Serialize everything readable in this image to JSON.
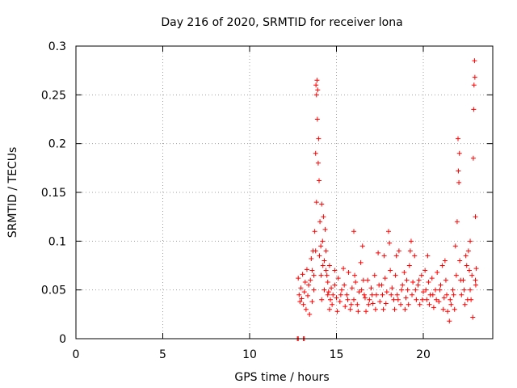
{
  "chart_data": {
    "type": "scatter",
    "title": "Day 216 of 2020, SRMTID for receiver lona",
    "xlabel": "GPS time / hours",
    "ylabel": "SRMTID / TECUs",
    "xlim": [
      0,
      24
    ],
    "ylim": [
      0,
      0.3
    ],
    "xticks": [
      0,
      5,
      10,
      15,
      20
    ],
    "xtick_labels": [
      "0",
      "5",
      "10",
      "15",
      "20"
    ],
    "yticks": [
      0,
      0.05,
      0.1,
      0.15,
      0.2,
      0.25,
      0.3
    ],
    "ytick_labels": [
      "0",
      "0.05",
      "0.1",
      "0.15",
      "0.2",
      "0.25",
      "0.3"
    ],
    "grid": true,
    "marker": "+",
    "color": "#ff0000",
    "series": [
      {
        "name": "SRMTID",
        "points": [
          [
            12.75,
            0.0
          ],
          [
            12.8,
            0.0
          ],
          [
            13.1,
            0.0
          ],
          [
            13.15,
            0.0
          ],
          [
            12.8,
            0.062
          ],
          [
            12.85,
            0.045
          ],
          [
            12.9,
            0.038
          ],
          [
            12.95,
            0.052
          ],
          [
            13.0,
            0.041
          ],
          [
            13.05,
            0.066
          ],
          [
            13.1,
            0.035
          ],
          [
            13.15,
            0.048
          ],
          [
            13.2,
            0.058
          ],
          [
            13.25,
            0.03
          ],
          [
            13.3,
            0.071
          ],
          [
            13.35,
            0.044
          ],
          [
            13.4,
            0.055
          ],
          [
            13.45,
            0.025
          ],
          [
            13.5,
            0.06
          ],
          [
            13.55,
            0.082
          ],
          [
            13.6,
            0.038
          ],
          [
            13.65,
            0.09
          ],
          [
            13.7,
            0.05
          ],
          [
            13.75,
            0.11
          ],
          [
            13.8,
            0.19
          ],
          [
            13.82,
            0.26
          ],
          [
            13.85,
            0.25
          ],
          [
            13.88,
            0.265
          ],
          [
            13.9,
            0.225
          ],
          [
            13.92,
            0.255
          ],
          [
            13.95,
            0.18
          ],
          [
            13.97,
            0.205
          ],
          [
            14.0,
            0.162
          ],
          [
            14.05,
            0.12
          ],
          [
            14.1,
            0.095
          ],
          [
            14.15,
            0.138
          ],
          [
            14.2,
            0.1
          ],
          [
            14.25,
            0.125
          ],
          [
            14.3,
            0.08
          ],
          [
            14.35,
            0.112
          ],
          [
            14.4,
            0.07
          ],
          [
            14.45,
            0.065
          ],
          [
            14.5,
            0.058
          ],
          [
            14.55,
            0.048
          ],
          [
            14.6,
            0.075
          ],
          [
            14.65,
            0.04
          ],
          [
            14.7,
            0.052
          ],
          [
            14.75,
            0.035
          ],
          [
            14.8,
            0.045
          ],
          [
            14.9,
            0.055
          ],
          [
            15.0,
            0.042
          ],
          [
            15.1,
            0.062
          ],
          [
            15.2,
            0.038
          ],
          [
            15.3,
            0.05
          ],
          [
            15.4,
            0.072
          ],
          [
            15.5,
            0.033
          ],
          [
            15.6,
            0.045
          ],
          [
            15.7,
            0.068
          ],
          [
            15.8,
            0.03
          ],
          [
            15.9,
            0.052
          ],
          [
            16.0,
            0.04
          ],
          [
            16.1,
            0.058
          ],
          [
            16.2,
            0.035
          ],
          [
            16.3,
            0.048
          ],
          [
            16.4,
            0.078
          ],
          [
            16.5,
            0.095
          ],
          [
            16.6,
            0.045
          ],
          [
            16.7,
            0.028
          ],
          [
            16.8,
            0.06
          ],
          [
            16.9,
            0.04
          ],
          [
            17.0,
            0.052
          ],
          [
            17.1,
            0.036
          ],
          [
            17.2,
            0.065
          ],
          [
            17.3,
            0.045
          ],
          [
            17.4,
            0.088
          ],
          [
            17.5,
            0.038
          ],
          [
            17.6,
            0.055
          ],
          [
            17.7,
            0.03
          ],
          [
            17.8,
            0.062
          ],
          [
            17.9,
            0.048
          ],
          [
            18.0,
            0.11
          ],
          [
            18.05,
            0.098
          ],
          [
            18.1,
            0.07
          ],
          [
            18.2,
            0.052
          ],
          [
            18.3,
            0.04
          ],
          [
            18.4,
            0.065
          ],
          [
            18.5,
            0.045
          ],
          [
            18.6,
            0.09
          ],
          [
            18.7,
            0.035
          ],
          [
            18.8,
            0.055
          ],
          [
            18.9,
            0.068
          ],
          [
            19.0,
            0.042
          ],
          [
            19.1,
            0.05
          ],
          [
            19.2,
            0.075
          ],
          [
            19.3,
            0.1
          ],
          [
            19.4,
            0.058
          ],
          [
            19.5,
            0.085
          ],
          [
            19.6,
            0.04
          ],
          [
            19.7,
            0.055
          ],
          [
            19.8,
            0.035
          ],
          [
            19.9,
            0.065
          ],
          [
            20.0,
            0.048
          ],
          [
            20.1,
            0.07
          ],
          [
            20.2,
            0.04
          ],
          [
            20.3,
            0.058
          ],
          [
            20.4,
            0.045
          ],
          [
            20.5,
            0.062
          ],
          [
            20.6,
            0.032
          ],
          [
            20.7,
            0.05
          ],
          [
            20.8,
            0.068
          ],
          [
            20.9,
            0.038
          ],
          [
            21.0,
            0.055
          ],
          [
            21.1,
            0.075
          ],
          [
            21.2,
            0.042
          ],
          [
            21.3,
            0.06
          ],
          [
            21.4,
            0.028
          ],
          [
            21.5,
            0.018
          ],
          [
            21.6,
            0.035
          ],
          [
            21.7,
            0.05
          ],
          [
            21.8,
            0.03
          ],
          [
            21.9,
            0.065
          ],
          [
            21.95,
            0.12
          ],
          [
            22.0,
            0.205
          ],
          [
            22.02,
            0.172
          ],
          [
            22.05,
            0.16
          ],
          [
            22.08,
            0.19
          ],
          [
            22.1,
            0.08
          ],
          [
            22.2,
            0.045
          ],
          [
            22.3,
            0.06
          ],
          [
            22.4,
            0.035
          ],
          [
            22.5,
            0.075
          ],
          [
            22.6,
            0.09
          ],
          [
            22.7,
            0.05
          ],
          [
            22.75,
            0.04
          ],
          [
            22.8,
            0.065
          ],
          [
            22.85,
            0.022
          ],
          [
            22.88,
            0.185
          ],
          [
            22.9,
            0.235
          ],
          [
            22.92,
            0.26
          ],
          [
            22.95,
            0.285
          ],
          [
            22.97,
            0.268
          ],
          [
            23.0,
            0.125
          ],
          [
            23.02,
            0.055
          ],
          [
            23.05,
            0.072
          ],
          [
            14.15,
            0.04
          ],
          [
            14.3,
            0.05
          ],
          [
            14.6,
            0.03
          ],
          [
            14.9,
            0.07
          ],
          [
            15.05,
            0.028
          ],
          [
            15.25,
            0.045
          ],
          [
            15.45,
            0.055
          ],
          [
            15.65,
            0.04
          ],
          [
            15.85,
            0.035
          ],
          [
            16.05,
            0.065
          ],
          [
            16.25,
            0.028
          ],
          [
            16.45,
            0.05
          ],
          [
            16.65,
            0.042
          ],
          [
            16.85,
            0.035
          ],
          [
            17.05,
            0.045
          ],
          [
            17.25,
            0.03
          ],
          [
            17.45,
            0.055
          ],
          [
            17.65,
            0.045
          ],
          [
            17.85,
            0.036
          ],
          [
            18.15,
            0.045
          ],
          [
            18.35,
            0.03
          ],
          [
            18.55,
            0.04
          ],
          [
            18.75,
            0.05
          ],
          [
            18.95,
            0.03
          ],
          [
            19.15,
            0.035
          ],
          [
            19.35,
            0.045
          ],
          [
            19.55,
            0.05
          ],
          [
            19.75,
            0.06
          ],
          [
            19.95,
            0.04
          ],
          [
            20.15,
            0.05
          ],
          [
            20.35,
            0.035
          ],
          [
            20.55,
            0.045
          ],
          [
            20.75,
            0.04
          ],
          [
            20.95,
            0.05
          ],
          [
            21.15,
            0.03
          ],
          [
            21.35,
            0.045
          ],
          [
            21.55,
            0.04
          ],
          [
            21.75,
            0.045
          ],
          [
            22.15,
            0.06
          ],
          [
            22.35,
            0.05
          ],
          [
            22.55,
            0.04
          ],
          [
            22.65,
            0.07
          ],
          [
            23.0,
            0.06
          ],
          [
            13.6,
            0.07
          ],
          [
            13.7,
            0.065
          ],
          [
            13.8,
            0.09
          ],
          [
            13.85,
            0.14
          ],
          [
            14.02,
            0.085
          ],
          [
            14.12,
            0.065
          ],
          [
            14.22,
            0.075
          ],
          [
            14.4,
            0.09
          ],
          [
            14.5,
            0.045
          ],
          [
            16.0,
            0.11
          ],
          [
            16.55,
            0.06
          ],
          [
            17.75,
            0.085
          ],
          [
            18.45,
            0.085
          ],
          [
            19.05,
            0.06
          ],
          [
            19.25,
            0.09
          ],
          [
            20.25,
            0.085
          ],
          [
            21.25,
            0.08
          ],
          [
            21.85,
            0.095
          ],
          [
            22.45,
            0.085
          ],
          [
            22.7,
            0.1
          ]
        ]
      }
    ]
  }
}
